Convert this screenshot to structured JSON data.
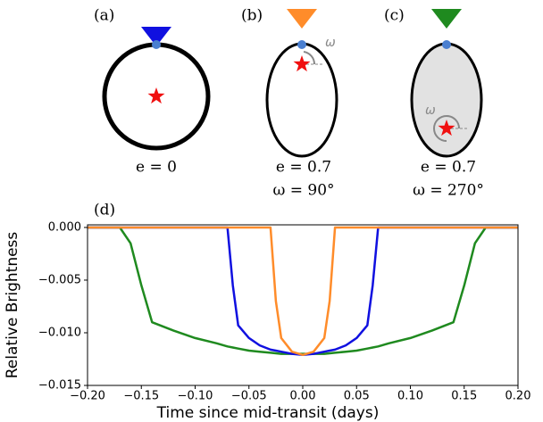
{
  "panels": [
    {
      "label": "(a)",
      "e_label": "e = 0"
    },
    {
      "label": "(b)",
      "e_label": "e = 0.7",
      "omega_label": "ω = 90°",
      "omega_symbol": "ω"
    },
    {
      "label": "(c)",
      "e_label": "e = 0.7",
      "omega_label": "ω = 270°",
      "omega_symbol": "ω"
    }
  ],
  "chart_data": {
    "type": "line",
    "label": "(d)",
    "xlabel": "Time since mid-transit (days)",
    "ylabel": "Relative Brightness",
    "x": [
      -0.2,
      -0.18,
      -0.17,
      -0.16,
      -0.15,
      -0.14,
      -0.12,
      -0.1,
      -0.08,
      -0.07,
      -0.065,
      -0.06,
      -0.05,
      -0.04,
      -0.03,
      -0.025,
      -0.02,
      -0.01,
      0,
      0.01,
      0.02,
      0.025,
      0.03,
      0.04,
      0.05,
      0.06,
      0.065,
      0.07,
      0.08,
      0.1,
      0.12,
      0.14,
      0.15,
      0.16,
      0.17,
      0.18,
      0.2
    ],
    "series": [
      {
        "color": "#1f8a1f",
        "values": [
          0,
          0,
          0,
          -0.0015,
          -0.0055,
          -0.009,
          -0.0098,
          -0.0105,
          -0.011,
          -0.0113,
          -0.0114,
          -0.0115,
          -0.0117,
          -0.0118,
          -0.0119,
          -0.01195,
          -0.012,
          -0.012,
          -0.012,
          -0.012,
          -0.012,
          -0.01195,
          -0.0119,
          -0.0118,
          -0.0117,
          -0.0115,
          -0.0114,
          -0.0113,
          -0.011,
          -0.0105,
          -0.0098,
          -0.009,
          -0.0055,
          -0.0015,
          0,
          0,
          0
        ]
      },
      {
        "color": "#1010e0",
        "values": [
          0,
          0,
          0,
          0,
          0,
          0,
          0,
          0,
          0,
          0,
          -0.0055,
          -0.0093,
          -0.0105,
          -0.0112,
          -0.0116,
          -0.0117,
          -0.0118,
          -0.012,
          -0.0121,
          -0.012,
          -0.0118,
          -0.0117,
          -0.0116,
          -0.0112,
          -0.0105,
          -0.0093,
          -0.0055,
          0,
          0,
          0,
          0,
          0,
          0,
          0,
          0,
          0,
          0
        ]
      },
      {
        "color": "#ff8c2a",
        "values": [
          0,
          0,
          0,
          0,
          0,
          0,
          0,
          0,
          0,
          0,
          0,
          0,
          0,
          0,
          0,
          -0.007,
          -0.0105,
          -0.0118,
          -0.0121,
          -0.0118,
          -0.0105,
          -0.007,
          0,
          0,
          0,
          0,
          0,
          0,
          0,
          0,
          0,
          0,
          0,
          0,
          0,
          0,
          0
        ]
      }
    ],
    "xlim": [
      -0.2,
      0.2
    ],
    "ylim": [
      -0.015,
      0.00025
    ],
    "xticks": [
      {
        "value": -0.2,
        "label": "−0.20"
      },
      {
        "value": -0.15,
        "label": "−0.15"
      },
      {
        "value": -0.1,
        "label": "−0.10"
      },
      {
        "value": -0.05,
        "label": "−0.05"
      },
      {
        "value": 0,
        "label": "0.00"
      },
      {
        "value": 0.05,
        "label": "0.05"
      },
      {
        "value": 0.1,
        "label": "0.10"
      },
      {
        "value": 0.15,
        "label": "0.15"
      },
      {
        "value": 0.2,
        "label": "0.20"
      }
    ],
    "yticks": [
      {
        "value": 0,
        "label": "0.000"
      },
      {
        "value": -0.005,
        "label": "−0.005"
      },
      {
        "value": -0.01,
        "label": "−0.010"
      },
      {
        "value": -0.015,
        "label": "−0.015"
      }
    ]
  }
}
